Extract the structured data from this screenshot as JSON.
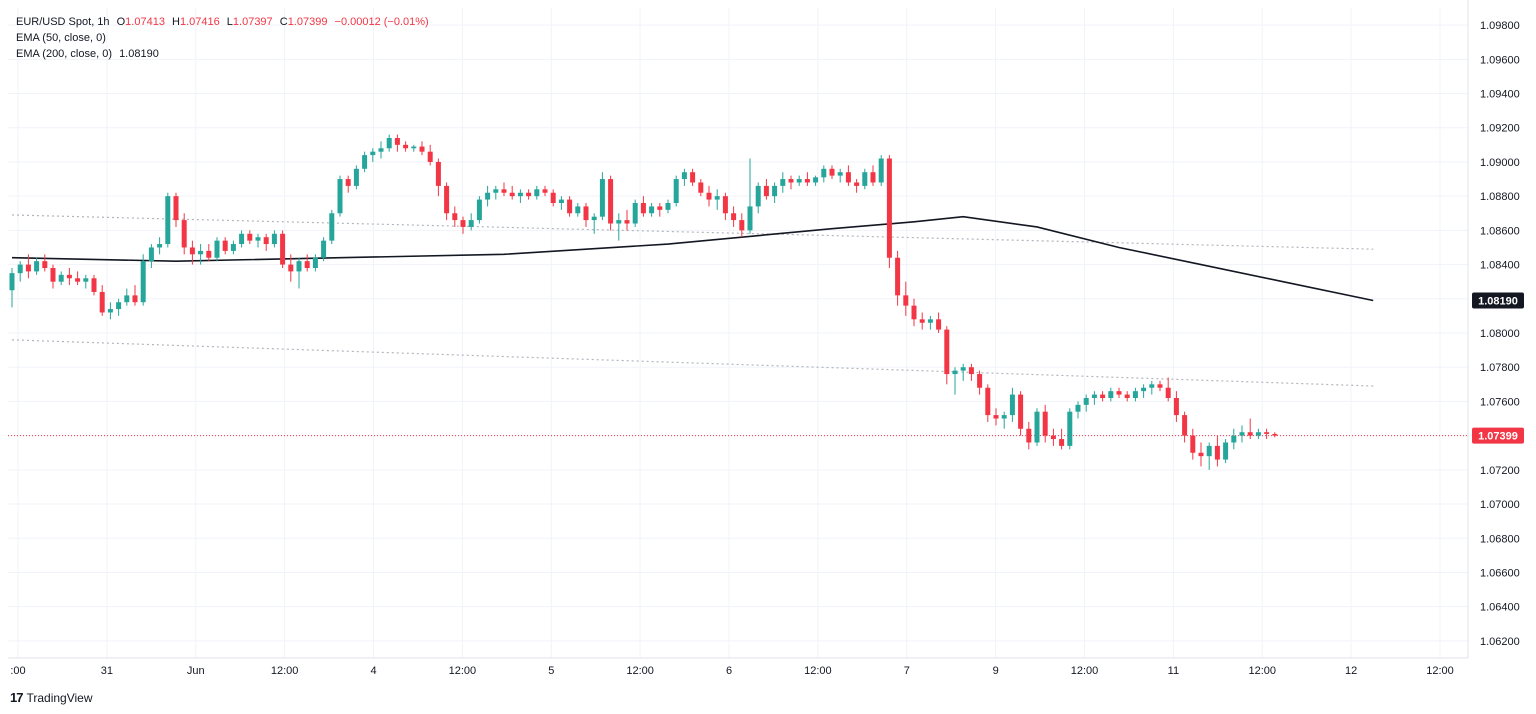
{
  "legend": {
    "symbol": "EUR/USD Spot, 1h",
    "open_label": "O",
    "open": "1.07413",
    "high_label": "H",
    "high": "1.07416",
    "low_label": "L",
    "low": "1.07397",
    "close_label": "C",
    "close": "1.07399",
    "change": "−0.00012 (−0.01%)",
    "ema50_label": "EMA (50, close, 0)",
    "ema200_label": "EMA (200, close, 0)",
    "ema200_value": "1.08190"
  },
  "brand": {
    "logo": "17",
    "name": "TradingView"
  },
  "colors": {
    "up": "#26a69a",
    "down": "#f23645",
    "ema": "#131722",
    "grid": "#f0f3fa",
    "dotted": "#b2b5be"
  },
  "chart_data": {
    "type": "candlestick",
    "ylim": [
      1.061,
      1.099
    ],
    "y_ticks": [
      "1.09800",
      "1.09600",
      "1.09400",
      "1.09200",
      "1.09000",
      "1.08800",
      "1.08600",
      "1.08400",
      "1.08200",
      "1.08000",
      "1.07800",
      "1.07600",
      "1.07400",
      "1.07200",
      "1.07000",
      "1.06800",
      "1.06600",
      "1.06400",
      "1.06200"
    ],
    "x_tick_labels": [
      ":00",
      "31",
      "Jun",
      "12:00",
      "4",
      "12:00",
      "5",
      "12:00",
      "6",
      "12:00",
      "7",
      "9",
      "12:00",
      "11",
      "12:00",
      "12",
      "12:00"
    ],
    "last_price_label": "1.07399",
    "ema200_price_label": "1.08190",
    "candles": [
      [
        1.0825,
        1.0838,
        1.0815,
        1.0835
      ],
      [
        1.0835,
        1.0842,
        1.083,
        1.084
      ],
      [
        1.084,
        1.0846,
        1.0832,
        1.0836
      ],
      [
        1.0836,
        1.0844,
        1.0834,
        1.0842
      ],
      [
        1.0842,
        1.0846,
        1.0836,
        1.0838
      ],
      [
        1.0838,
        1.084,
        1.0826,
        1.083
      ],
      [
        1.083,
        1.0836,
        1.0828,
        1.0834
      ],
      [
        1.0834,
        1.0838,
        1.0828,
        1.0832
      ],
      [
        1.0832,
        1.0836,
        1.0828,
        1.083
      ],
      [
        1.083,
        1.0834,
        1.0826,
        1.0832
      ],
      [
        1.0832,
        1.0834,
        1.0822,
        1.0824
      ],
      [
        1.0824,
        1.0828,
        1.081,
        1.0812
      ],
      [
        1.0812,
        1.0818,
        1.0808,
        1.0814
      ],
      [
        1.0814,
        1.082,
        1.081,
        1.0818
      ],
      [
        1.0818,
        1.0826,
        1.0816,
        1.0822
      ],
      [
        1.0822,
        1.0828,
        1.0816,
        1.0818
      ],
      [
        1.0818,
        1.0846,
        1.0816,
        1.0842
      ],
      [
        1.0842,
        1.0852,
        1.0838,
        1.085
      ],
      [
        1.085,
        1.0856,
        1.0846,
        1.0852
      ],
      [
        1.0852,
        1.0882,
        1.085,
        1.088
      ],
      [
        1.088,
        1.0882,
        1.0862,
        1.0866
      ],
      [
        1.0866,
        1.087,
        1.0846,
        1.085
      ],
      [
        1.085,
        1.0854,
        1.084,
        1.0846
      ],
      [
        1.0846,
        1.0852,
        1.084,
        1.0848
      ],
      [
        1.0848,
        1.0852,
        1.0842,
        1.0844
      ],
      [
        1.0844,
        1.0856,
        1.0842,
        1.0854
      ],
      [
        1.0854,
        1.0856,
        1.0846,
        1.0848
      ],
      [
        1.0848,
        1.0854,
        1.0846,
        1.0852
      ],
      [
        1.0852,
        1.086,
        1.085,
        1.0858
      ],
      [
        1.0858,
        1.086,
        1.0852,
        1.0854
      ],
      [
        1.0854,
        1.0858,
        1.085,
        1.0856
      ],
      [
        1.0856,
        1.0858,
        1.0848,
        1.0852
      ],
      [
        1.0852,
        1.086,
        1.085,
        1.0858
      ],
      [
        1.0858,
        1.086,
        1.0838,
        1.084
      ],
      [
        1.084,
        1.0846,
        1.083,
        1.0836
      ],
      [
        1.0836,
        1.0844,
        1.0826,
        1.0842
      ],
      [
        1.0842,
        1.0846,
        1.0836,
        1.0838
      ],
      [
        1.0838,
        1.0846,
        1.0836,
        1.0844
      ],
      [
        1.0844,
        1.0856,
        1.0842,
        1.0854
      ],
      [
        1.0854,
        1.0872,
        1.0852,
        1.087
      ],
      [
        1.087,
        1.0892,
        1.0868,
        1.089
      ],
      [
        1.089,
        1.0892,
        1.0882,
        1.0886
      ],
      [
        1.0886,
        1.0898,
        1.0884,
        1.0896
      ],
      [
        1.0896,
        1.0906,
        1.0894,
        1.0904
      ],
      [
        1.0904,
        1.0908,
        1.09,
        1.0906
      ],
      [
        1.0906,
        1.0912,
        1.0902,
        1.0908
      ],
      [
        1.0908,
        1.0916,
        1.0906,
        1.0914
      ],
      [
        1.0914,
        1.0916,
        1.0906,
        1.091
      ],
      [
        1.091,
        1.0912,
        1.0906,
        1.0908
      ],
      [
        1.0908,
        1.091,
        1.0906,
        1.0909
      ],
      [
        1.0909,
        1.0912,
        1.0904,
        1.0906
      ],
      [
        1.0906,
        1.091,
        1.0898,
        1.09
      ],
      [
        1.09,
        1.0902,
        1.088,
        1.0886
      ],
      [
        1.0886,
        1.0888,
        1.0866,
        1.087
      ],
      [
        1.087,
        1.0874,
        1.0862,
        1.0866
      ],
      [
        1.0866,
        1.0868,
        1.0858,
        1.0862
      ],
      [
        1.0862,
        1.087,
        1.086,
        1.0866
      ],
      [
        1.0866,
        1.088,
        1.0864,
        1.0878
      ],
      [
        1.0878,
        1.0886,
        1.0874,
        1.0882
      ],
      [
        1.0882,
        1.0886,
        1.0878,
        1.0884
      ],
      [
        1.0884,
        1.0888,
        1.088,
        1.0882
      ],
      [
        1.0882,
        1.0886,
        1.0878,
        1.088
      ],
      [
        1.088,
        1.0884,
        1.0876,
        1.0882
      ],
      [
        1.0882,
        1.0884,
        1.0878,
        1.088
      ],
      [
        1.088,
        1.0886,
        1.0878,
        1.0884
      ],
      [
        1.0884,
        1.0886,
        1.088,
        1.0882
      ],
      [
        1.0882,
        1.0884,
        1.0874,
        1.0876
      ],
      [
        1.0876,
        1.088,
        1.0872,
        1.0878
      ],
      [
        1.0878,
        1.088,
        1.0868,
        1.087
      ],
      [
        1.087,
        1.0876,
        1.0868,
        1.0874
      ],
      [
        1.0874,
        1.0876,
        1.0862,
        1.0866
      ],
      [
        1.0866,
        1.087,
        1.0858,
        1.0868
      ],
      [
        1.0868,
        1.0894,
        1.0866,
        1.089
      ],
      [
        1.089,
        1.0892,
        1.086,
        1.0864
      ],
      [
        1.0864,
        1.087,
        1.0854,
        1.0866
      ],
      [
        1.0866,
        1.0872,
        1.086,
        1.0864
      ],
      [
        1.0864,
        1.0878,
        1.0862,
        1.0876
      ],
      [
        1.0876,
        1.088,
        1.0868,
        1.087
      ],
      [
        1.087,
        1.0876,
        1.0868,
        1.0874
      ],
      [
        1.0874,
        1.0876,
        1.0868,
        1.0872
      ],
      [
        1.0872,
        1.0878,
        1.087,
        1.0876
      ],
      [
        1.0876,
        1.0892,
        1.0874,
        1.089
      ],
      [
        1.089,
        1.0896,
        1.0886,
        1.0894
      ],
      [
        1.0894,
        1.0896,
        1.0886,
        1.0888
      ],
      [
        1.0888,
        1.089,
        1.088,
        1.0882
      ],
      [
        1.0882,
        1.0886,
        1.0874,
        1.0878
      ],
      [
        1.0878,
        1.0884,
        1.0872,
        1.088
      ],
      [
        1.088,
        1.0882,
        1.0866,
        1.087
      ],
      [
        1.087,
        1.0874,
        1.0862,
        1.0866
      ],
      [
        1.0866,
        1.087,
        1.0856,
        1.086
      ],
      [
        1.086,
        1.0902,
        1.0858,
        1.0874
      ],
      [
        1.0874,
        1.0888,
        1.087,
        1.0886
      ],
      [
        1.0886,
        1.089,
        1.0878,
        1.088
      ],
      [
        1.088,
        1.0888,
        1.0876,
        1.0886
      ],
      [
        1.0886,
        1.0894,
        1.0882,
        1.089
      ],
      [
        1.089,
        1.0892,
        1.0884,
        1.0888
      ],
      [
        1.0888,
        1.0892,
        1.0886,
        1.089
      ],
      [
        1.089,
        1.0894,
        1.0886,
        1.0888
      ],
      [
        1.0888,
        1.0892,
        1.0886,
        1.0891
      ],
      [
        1.0891,
        1.0898,
        1.0888,
        1.0896
      ],
      [
        1.0896,
        1.0898,
        1.089,
        1.0892
      ],
      [
        1.0892,
        1.0896,
        1.0888,
        1.0894
      ],
      [
        1.0894,
        1.0898,
        1.0886,
        1.0888
      ],
      [
        1.0888,
        1.089,
        1.0882,
        1.0886
      ],
      [
        1.0886,
        1.0896,
        1.0884,
        1.0894
      ],
      [
        1.0894,
        1.0898,
        1.0886,
        1.0888
      ],
      [
        1.0888,
        1.0904,
        1.0886,
        1.0902
      ],
      [
        1.0902,
        1.0904,
        1.0838,
        1.0844
      ],
      [
        1.0844,
        1.0848,
        1.0816,
        1.0822
      ],
      [
        1.0822,
        1.083,
        1.081,
        1.0816
      ],
      [
        1.0816,
        1.082,
        1.0804,
        1.0808
      ],
      [
        1.0808,
        1.0812,
        1.0802,
        1.0806
      ],
      [
        1.0806,
        1.081,
        1.0802,
        1.0808
      ],
      [
        1.0808,
        1.0812,
        1.08,
        1.0802
      ],
      [
        1.0802,
        1.0804,
        1.077,
        1.0776
      ],
      [
        1.0776,
        1.078,
        1.0764,
        1.0778
      ],
      [
        1.0778,
        1.0782,
        1.0772,
        1.078
      ],
      [
        1.078,
        1.0782,
        1.0772,
        1.0776
      ],
      [
        1.0776,
        1.0778,
        1.0764,
        1.0768
      ],
      [
        1.0768,
        1.077,
        1.0748,
        1.0752
      ],
      [
        1.0752,
        1.0756,
        1.0746,
        1.075
      ],
      [
        1.075,
        1.0754,
        1.0744,
        1.0752
      ],
      [
        1.0752,
        1.0768,
        1.0748,
        1.0764
      ],
      [
        1.0764,
        1.0766,
        1.074,
        1.0744
      ],
      [
        1.0744,
        1.0748,
        1.0732,
        1.0736
      ],
      [
        1.0736,
        1.0756,
        1.0734,
        1.0754
      ],
      [
        1.0754,
        1.0758,
        1.0736,
        1.074
      ],
      [
        1.074,
        1.0744,
        1.0734,
        1.0738
      ],
      [
        1.0738,
        1.0744,
        1.0732,
        1.0734
      ],
      [
        1.0734,
        1.0756,
        1.0732,
        1.0754
      ],
      [
        1.0754,
        1.076,
        1.075,
        1.0758
      ],
      [
        1.0758,
        1.0764,
        1.0754,
        1.0762
      ],
      [
        1.0762,
        1.0766,
        1.0758,
        1.0764
      ],
      [
        1.0764,
        1.0766,
        1.076,
        1.0762
      ],
      [
        1.0762,
        1.0768,
        1.076,
        1.0766
      ],
      [
        1.0766,
        1.0768,
        1.0762,
        1.0764
      ],
      [
        1.0764,
        1.0766,
        1.076,
        1.0762
      ],
      [
        1.0762,
        1.0768,
        1.076,
        1.0766
      ],
      [
        1.0766,
        1.077,
        1.0762,
        1.0768
      ],
      [
        1.0768,
        1.0772,
        1.0764,
        1.077
      ],
      [
        1.077,
        1.0772,
        1.0766,
        1.0768
      ],
      [
        1.0768,
        1.0774,
        1.076,
        1.0762
      ],
      [
        1.0762,
        1.0766,
        1.0748,
        1.0752
      ],
      [
        1.0752,
        1.0754,
        1.0736,
        1.074
      ],
      [
        1.074,
        1.0744,
        1.0726,
        1.073
      ],
      [
        1.073,
        1.0736,
        1.0722,
        1.0728
      ],
      [
        1.0728,
        1.0736,
        1.072,
        1.0734
      ],
      [
        1.0734,
        1.074,
        1.0722,
        1.0726
      ],
      [
        1.0726,
        1.0738,
        1.0724,
        1.0736
      ],
      [
        1.0736,
        1.0744,
        1.0732,
        1.074
      ],
      [
        1.074,
        1.0746,
        1.0736,
        1.0742
      ],
      [
        1.0742,
        1.075,
        1.0738,
        1.074
      ],
      [
        1.074,
        1.0744,
        1.0738,
        1.0742
      ],
      [
        1.0742,
        1.0744,
        1.0738,
        1.0741
      ],
      [
        1.0741,
        1.0742,
        1.0739,
        1.074
      ]
    ],
    "ema200_points": [
      [
        0,
        1.0844
      ],
      [
        20,
        1.0842
      ],
      [
        40,
        1.0844
      ],
      [
        60,
        1.0846
      ],
      [
        80,
        1.0852
      ],
      [
        100,
        1.0861
      ],
      [
        110,
        1.0865
      ],
      [
        116,
        1.0868
      ],
      [
        125,
        1.0862
      ],
      [
        135,
        1.085
      ],
      [
        145,
        1.084
      ],
      [
        155,
        1.083
      ],
      [
        166,
        1.0819
      ]
    ],
    "trendlines": [
      [
        [
          0,
          1.0869
        ],
        [
          166,
          1.0849
        ]
      ],
      [
        [
          0,
          1.0796
        ],
        [
          166,
          1.0769
        ]
      ]
    ]
  }
}
